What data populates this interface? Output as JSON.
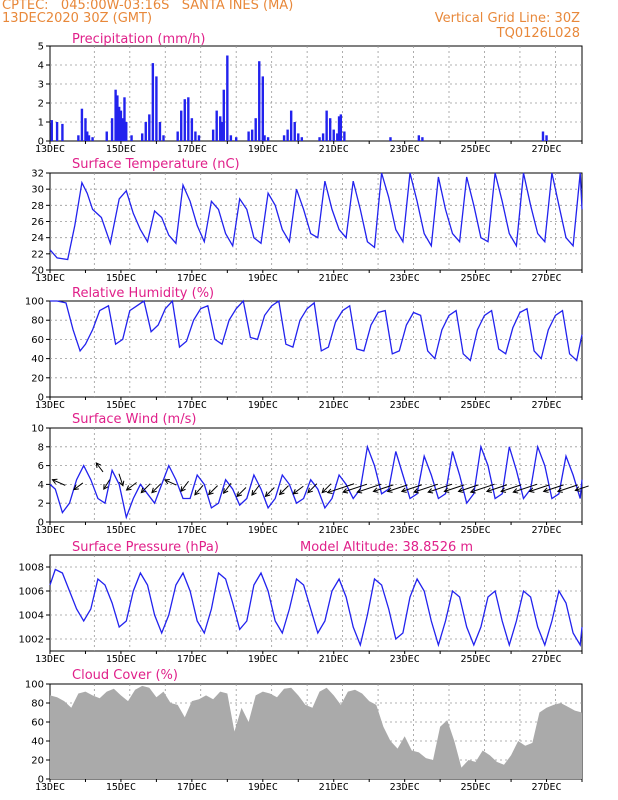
{
  "header": {
    "line1_left": "CPTEC:   045:00W-03:16S   SANTA INES (MA)",
    "line2_left": "13DEC2020 30Z (GMT)",
    "line2_right": "Vertical Grid Line: 30Z",
    "line3_right": "TQ0126L028"
  },
  "colors": {
    "series": "#2222ee",
    "cloud": "#aaaaaa",
    "header": "#e8883a",
    "title": "#e0208a"
  },
  "chart_data": [
    {
      "id": "precip",
      "type": "bar",
      "title": "Precipitation (mm/h)",
      "ylim": [
        0,
        5
      ],
      "yticks": [
        0,
        1,
        2,
        3,
        4,
        5
      ],
      "xlabels": [
        "13DEC",
        "15DEC",
        "17DEC",
        "19DEC",
        "21DEC",
        "23DEC",
        "25DEC",
        "27DEC"
      ],
      "x_unit": "days since 13DEC 00Z",
      "x": [
        0.05,
        0.2,
        0.35,
        0.8,
        0.9,
        1.0,
        1.05,
        1.1,
        1.2,
        1.6,
        1.75,
        1.85,
        1.9,
        1.95,
        2.0,
        2.05,
        2.1,
        2.15,
        2.3,
        2.6,
        2.7,
        2.8,
        2.9,
        3.0,
        3.1,
        3.2,
        3.6,
        3.7,
        3.8,
        3.9,
        4.0,
        4.1,
        4.2,
        4.6,
        4.7,
        4.8,
        4.85,
        4.9,
        5.0,
        5.1,
        5.25,
        5.6,
        5.7,
        5.8,
        5.9,
        6.0,
        6.05,
        6.15,
        6.6,
        6.7,
        6.8,
        6.9,
        7.0,
        7.1,
        7.6,
        7.7,
        7.8,
        7.9,
        8.0,
        8.1,
        8.15,
        8.2,
        8.3,
        9.6,
        10.4,
        10.5,
        13.9,
        14.0
      ],
      "values": [
        1.1,
        1.0,
        0.9,
        0.3,
        1.7,
        1.2,
        0.5,
        0.3,
        0.2,
        0.5,
        1.2,
        2.7,
        2.4,
        1.8,
        1.6,
        1.2,
        2.3,
        1.0,
        0.3,
        0.4,
        1.0,
        1.4,
        4.1,
        3.4,
        1.0,
        0.3,
        0.5,
        1.6,
        2.2,
        2.3,
        1.2,
        0.5,
        0.3,
        0.6,
        1.6,
        1.3,
        1.0,
        2.7,
        4.5,
        0.3,
        0.2,
        0.5,
        0.6,
        1.2,
        4.2,
        3.4,
        0.3,
        0.2,
        0.3,
        0.6,
        1.6,
        1.0,
        0.4,
        0.2,
        0.2,
        0.4,
        1.6,
        1.2,
        0.6,
        0.4,
        1.3,
        1.4,
        0.5,
        0.2,
        0.3,
        0.2,
        0.5,
        0.3
      ]
    },
    {
      "id": "temp",
      "type": "line",
      "title": "Surface Temperature (nC)",
      "ylim": [
        20,
        32
      ],
      "yticks": [
        20,
        22,
        24,
        26,
        28,
        30,
        32
      ],
      "xlabels": [
        "13DEC",
        "15DEC",
        "17DEC",
        "19DEC",
        "21DEC",
        "23DEC",
        "25DEC",
        "27DEC"
      ],
      "x": [
        0,
        0.2,
        0.5,
        0.7,
        0.9,
        1.05,
        1.2,
        1.45,
        1.7,
        1.95,
        2.15,
        2.35,
        2.55,
        2.75,
        2.95,
        3.15,
        3.35,
        3.55,
        3.75,
        3.95,
        4.15,
        4.35,
        4.55,
        4.75,
        4.95,
        5.15,
        5.35,
        5.55,
        5.75,
        5.95,
        6.15,
        6.35,
        6.55,
        6.75,
        6.95,
        7.15,
        7.35,
        7.55,
        7.75,
        7.95,
        8.15,
        8.35,
        8.55,
        8.75,
        8.95,
        9.15,
        9.35,
        9.55,
        9.75,
        9.95,
        10.15,
        10.35,
        10.55,
        10.75,
        10.95,
        11.15,
        11.35,
        11.55,
        11.75,
        11.95,
        12.15,
        12.35,
        12.55,
        12.75,
        12.95,
        13.15,
        13.35,
        13.55,
        13.75,
        13.95,
        14.15,
        14.35,
        14.55,
        14.75,
        14.95,
        15.0
      ],
      "values": [
        22.5,
        21.5,
        21.3,
        25.5,
        30.8,
        29.5,
        27.5,
        26.5,
        23.3,
        28.8,
        29.8,
        27.0,
        25.0,
        23.5,
        27.3,
        26.5,
        24.3,
        23.3,
        30.5,
        28.5,
        25.5,
        23.5,
        28.5,
        27.5,
        24.5,
        23.0,
        28.8,
        27.5,
        24.0,
        23.3,
        29.5,
        28.0,
        25.0,
        23.5,
        30.0,
        27.5,
        24.5,
        24.0,
        31.0,
        27.5,
        25.0,
        24.0,
        31.0,
        27.5,
        23.5,
        22.8,
        32.0,
        29.0,
        25.0,
        23.5,
        32.0,
        28.5,
        24.5,
        23.0,
        31.5,
        27.5,
        24.5,
        23.5,
        31.5,
        28.0,
        24.0,
        23.5,
        32.0,
        28.5,
        24.5,
        23.0,
        32.0,
        28.0,
        24.5,
        23.5,
        32.0,
        28.0,
        24.0,
        23.0,
        32.0,
        27.5
      ]
    },
    {
      "id": "rh",
      "type": "line",
      "title": "Relative Humidity (%)",
      "ylim": [
        0,
        100
      ],
      "yticks": [
        0,
        20,
        40,
        60,
        80,
        100
      ],
      "xlabels": [
        "13DEC",
        "15DEC",
        "17DEC",
        "19DEC",
        "21DEC",
        "23DEC",
        "25DEC",
        "27DEC"
      ],
      "x": [
        0,
        0.2,
        0.45,
        0.65,
        0.85,
        1.0,
        1.2,
        1.4,
        1.65,
        1.85,
        2.05,
        2.25,
        2.45,
        2.65,
        2.85,
        3.05,
        3.25,
        3.45,
        3.65,
        3.85,
        4.05,
        4.25,
        4.45,
        4.65,
        4.85,
        5.05,
        5.25,
        5.45,
        5.65,
        5.85,
        6.05,
        6.25,
        6.45,
        6.65,
        6.85,
        7.05,
        7.25,
        7.45,
        7.65,
        7.85,
        8.05,
        8.25,
        8.45,
        8.65,
        8.85,
        9.05,
        9.25,
        9.45,
        9.65,
        9.85,
        10.05,
        10.25,
        10.45,
        10.65,
        10.85,
        11.05,
        11.25,
        11.45,
        11.65,
        11.85,
        12.05,
        12.25,
        12.45,
        12.65,
        12.85,
        13.05,
        13.25,
        13.45,
        13.65,
        13.85,
        14.05,
        14.25,
        14.45,
        14.65,
        14.85,
        15.0
      ],
      "values": [
        100,
        100,
        98,
        70,
        48,
        55,
        70,
        90,
        95,
        55,
        60,
        90,
        95,
        100,
        68,
        75,
        92,
        100,
        52,
        58,
        80,
        92,
        95,
        60,
        55,
        80,
        92,
        100,
        62,
        60,
        85,
        95,
        100,
        55,
        52,
        80,
        92,
        98,
        48,
        52,
        78,
        90,
        95,
        50,
        48,
        75,
        88,
        90,
        45,
        48,
        75,
        88,
        85,
        48,
        40,
        70,
        85,
        90,
        45,
        38,
        70,
        85,
        90,
        50,
        45,
        72,
        88,
        92,
        48,
        40,
        70,
        85,
        90,
        45,
        38,
        65
      ]
    },
    {
      "id": "wind",
      "type": "line",
      "title": "Surface Wind (m/s)",
      "ylim": [
        0,
        10
      ],
      "yticks": [
        0,
        2,
        4,
        6,
        8,
        10
      ],
      "xlabels": [
        "13DEC",
        "15DEC",
        "17DEC",
        "19DEC",
        "21DEC",
        "23DEC",
        "25DEC",
        "27DEC"
      ],
      "x": [
        0,
        0.15,
        0.35,
        0.55,
        0.75,
        0.95,
        1.15,
        1.35,
        1.55,
        1.75,
        1.95,
        2.15,
        2.35,
        2.55,
        2.75,
        2.95,
        3.15,
        3.35,
        3.55,
        3.75,
        3.95,
        4.15,
        4.35,
        4.55,
        4.75,
        4.95,
        5.15,
        5.35,
        5.55,
        5.75,
        5.95,
        6.15,
        6.35,
        6.55,
        6.75,
        6.95,
        7.15,
        7.35,
        7.55,
        7.75,
        7.95,
        8.15,
        8.35,
        8.55,
        8.75,
        8.95,
        9.15,
        9.35,
        9.55,
        9.75,
        9.95,
        10.15,
        10.35,
        10.55,
        10.75,
        10.95,
        11.15,
        11.35,
        11.55,
        11.75,
        11.95,
        12.15,
        12.35,
        12.55,
        12.75,
        12.95,
        13.15,
        13.35,
        13.55,
        13.75,
        13.95,
        14.15,
        14.35,
        14.55,
        14.75,
        14.95,
        15.0
      ],
      "values": [
        4.0,
        3.5,
        1.0,
        2.0,
        4.5,
        6.0,
        4.5,
        2.5,
        2.0,
        5.5,
        4.0,
        0.5,
        2.5,
        4.0,
        3.0,
        2.0,
        4.0,
        6.0,
        4.5,
        2.5,
        2.5,
        5.0,
        4.0,
        1.5,
        2.0,
        4.5,
        3.5,
        1.8,
        2.5,
        5.0,
        3.5,
        1.5,
        2.5,
        5.0,
        4.0,
        2.0,
        2.5,
        4.5,
        3.5,
        1.5,
        2.5,
        5.0,
        4.0,
        2.5,
        3.5,
        8.0,
        6.0,
        3.0,
        3.5,
        7.5,
        5.0,
        2.5,
        3.0,
        7.0,
        5.0,
        2.5,
        3.0,
        7.5,
        5.0,
        2.0,
        3.0,
        8.0,
        6.0,
        2.5,
        3.0,
        8.0,
        5.5,
        2.5,
        3.5,
        8.0,
        6.0,
        2.5,
        3.0,
        7.0,
        5.0,
        2.5,
        4.5
      ],
      "arrows": {
        "x": [
          0.25,
          0.8,
          1.4,
          1.6,
          2.0,
          2.3,
          2.7,
          3.0,
          3.4,
          3.8,
          4.2,
          4.6,
          5.0,
          5.4,
          5.8,
          6.2,
          6.6,
          7.0,
          7.4,
          7.8,
          8.2,
          8.6,
          9.0,
          9.4,
          9.8,
          10.2,
          10.6,
          11.0,
          11.4,
          11.8,
          12.2,
          12.6,
          13.0,
          13.4,
          13.8,
          14.2,
          14.6,
          15.0
        ],
        "u": [
          -0.9,
          -0.8,
          -0.6,
          -0.5,
          0.3,
          -0.8,
          -0.7,
          -0.7,
          -0.9,
          -0.6,
          -0.6,
          -0.7,
          -0.6,
          -0.7,
          -0.6,
          -0.7,
          -0.7,
          -0.8,
          -0.7,
          -0.7,
          -0.9,
          -0.9,
          -0.9,
          -0.9,
          -0.9,
          -0.9,
          -0.9,
          -0.9,
          -0.9,
          -0.9,
          -0.9,
          -0.9,
          -0.9,
          -0.9,
          -0.9,
          -0.9,
          -0.9,
          -0.9
        ],
        "v": [
          0.4,
          -0.6,
          0.8,
          -0.8,
          -0.9,
          -0.6,
          -0.7,
          -0.7,
          0.4,
          -0.8,
          -0.7,
          -0.7,
          -0.8,
          -0.7,
          -0.8,
          -0.7,
          -0.7,
          -0.6,
          -0.7,
          -0.7,
          -0.3,
          -0.3,
          -0.3,
          -0.3,
          -0.3,
          -0.3,
          -0.3,
          -0.3,
          -0.3,
          -0.3,
          -0.3,
          -0.3,
          -0.3,
          -0.3,
          -0.3,
          -0.3,
          -0.3,
          -0.3
        ],
        "y": [
          4.2,
          3.8,
          5.8,
          4.0,
          4.5,
          3.8,
          3.6,
          3.6,
          4.2,
          3.8,
          3.4,
          3.4,
          3.6,
          3.2,
          3.4,
          3.2,
          3.4,
          3.4,
          3.6,
          3.6,
          3.6,
          3.6,
          3.6,
          3.6,
          3.6,
          3.6,
          3.6,
          3.6,
          3.6,
          3.6,
          3.6,
          3.6,
          3.6,
          3.6,
          3.6,
          3.6,
          3.6,
          3.6
        ],
        "len": [
          1.0,
          0.8,
          0.8,
          0.8,
          0.9,
          0.9,
          0.9,
          0.9,
          0.9,
          0.9,
          0.9,
          0.9,
          0.9,
          0.9,
          0.9,
          0.9,
          0.9,
          0.9,
          0.9,
          0.9,
          2.0,
          1.8,
          1.8,
          1.5,
          1.5,
          1.5,
          1.8,
          1.8,
          1.5,
          1.5,
          1.8,
          1.5,
          1.5,
          1.8,
          1.5,
          1.5,
          1.5,
          1.0
        ]
      }
    },
    {
      "id": "press",
      "type": "line",
      "title": "Surface Pressure (hPa)",
      "subtitle": "Model Altitude: 38.8526 m",
      "ylim": [
        1001,
        1009
      ],
      "yticks": [
        1002,
        1004,
        1006,
        1008
      ],
      "xlabels": [
        "13DEC",
        "15DEC",
        "17DEC",
        "19DEC",
        "21DEC",
        "23DEC",
        "25DEC",
        "27DEC"
      ],
      "x": [
        0,
        0.15,
        0.35,
        0.55,
        0.75,
        0.95,
        1.15,
        1.35,
        1.55,
        1.75,
        1.95,
        2.15,
        2.35,
        2.55,
        2.75,
        2.95,
        3.15,
        3.35,
        3.55,
        3.75,
        3.95,
        4.15,
        4.35,
        4.55,
        4.75,
        4.95,
        5.15,
        5.35,
        5.55,
        5.75,
        5.95,
        6.15,
        6.35,
        6.55,
        6.75,
        6.95,
        7.15,
        7.35,
        7.55,
        7.75,
        7.95,
        8.15,
        8.35,
        8.55,
        8.75,
        8.95,
        9.15,
        9.35,
        9.55,
        9.75,
        9.95,
        10.15,
        10.35,
        10.55,
        10.75,
        10.95,
        11.15,
        11.35,
        11.55,
        11.75,
        11.95,
        12.15,
        12.35,
        12.55,
        12.75,
        12.95,
        13.15,
        13.35,
        13.55,
        13.75,
        13.95,
        14.15,
        14.35,
        14.55,
        14.75,
        14.95,
        15.0
      ],
      "values": [
        1006.5,
        1007.8,
        1007.5,
        1006.0,
        1004.5,
        1003.5,
        1004.5,
        1007.0,
        1006.5,
        1005.0,
        1003.0,
        1003.5,
        1006.0,
        1007.5,
        1006.5,
        1004.0,
        1002.5,
        1004.0,
        1006.5,
        1007.5,
        1006.0,
        1003.5,
        1002.5,
        1004.5,
        1007.5,
        1007.0,
        1005.0,
        1002.8,
        1003.5,
        1006.5,
        1007.5,
        1006.0,
        1003.5,
        1002.5,
        1004.5,
        1007.0,
        1006.5,
        1004.5,
        1002.5,
        1003.5,
        1006.0,
        1007.0,
        1005.5,
        1003.0,
        1001.5,
        1004.0,
        1007.0,
        1006.5,
        1004.5,
        1002.0,
        1002.5,
        1005.5,
        1007.0,
        1006.0,
        1003.5,
        1001.5,
        1003.5,
        1006.0,
        1005.5,
        1003.0,
        1001.5,
        1003.0,
        1005.5,
        1006.0,
        1003.5,
        1001.5,
        1003.5,
        1006.0,
        1005.5,
        1003.0,
        1001.5,
        1003.5,
        1006.0,
        1005.0,
        1002.5,
        1001.5,
        1003.0
      ]
    },
    {
      "id": "cloud",
      "type": "area",
      "title": "Cloud Cover (%)",
      "ylim": [
        0,
        100
      ],
      "yticks": [
        0,
        20,
        40,
        60,
        80,
        100
      ],
      "xlabels": [
        "13DEC",
        "15DEC",
        "17DEC",
        "19DEC",
        "21DEC",
        "23DEC",
        "25DEC",
        "27DEC"
      ],
      "x": [
        0,
        0.2,
        0.4,
        0.6,
        0.8,
        1.0,
        1.2,
        1.4,
        1.6,
        1.8,
        2.0,
        2.2,
        2.4,
        2.6,
        2.8,
        3.0,
        3.2,
        3.4,
        3.6,
        3.8,
        4.0,
        4.2,
        4.4,
        4.6,
        4.8,
        5.0,
        5.2,
        5.4,
        5.6,
        5.8,
        6.0,
        6.2,
        6.4,
        6.6,
        6.8,
        7.0,
        7.2,
        7.4,
        7.6,
        7.8,
        8.0,
        8.2,
        8.4,
        8.6,
        8.8,
        9.0,
        9.2,
        9.4,
        9.6,
        9.8,
        10.0,
        10.2,
        10.4,
        10.6,
        10.8,
        11.0,
        11.2,
        11.4,
        11.6,
        11.8,
        12.0,
        12.2,
        12.4,
        12.6,
        12.8,
        13.0,
        13.2,
        13.4,
        13.6,
        13.8,
        14.0,
        14.2,
        14.4,
        14.6,
        14.8,
        15.0
      ],
      "values": [
        88,
        86,
        82,
        75,
        90,
        92,
        88,
        85,
        92,
        95,
        88,
        82,
        94,
        98,
        96,
        86,
        92,
        80,
        78,
        65,
        82,
        84,
        88,
        84,
        92,
        90,
        50,
        75,
        60,
        88,
        92,
        90,
        86,
        95,
        96,
        88,
        78,
        75,
        92,
        96,
        88,
        78,
        92,
        94,
        90,
        82,
        78,
        55,
        40,
        32,
        45,
        30,
        28,
        22,
        20,
        55,
        62,
        40,
        12,
        20,
        18,
        30,
        25,
        18,
        15,
        25,
        40,
        35,
        38,
        70,
        75,
        78,
        80,
        76,
        72,
        70
      ]
    }
  ]
}
